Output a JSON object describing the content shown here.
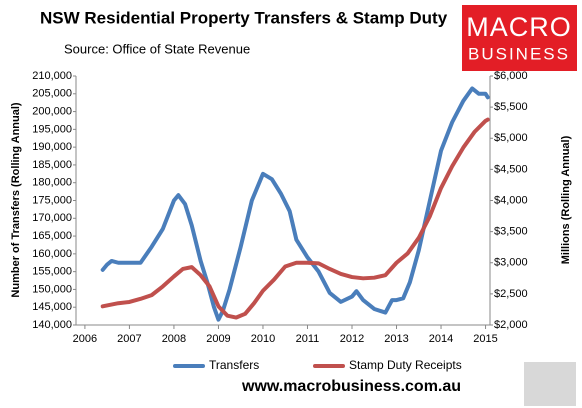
{
  "chart_data": {
    "type": "line",
    "title": "NSW Residential Property Transfers & Stamp Duty",
    "subtitle": "Source: Office of State Revenue",
    "logo": [
      "MACRO",
      "BUSINESS"
    ],
    "footer": "www.macrobusiness.com.au",
    "y_label": "Number of Transfers (Rolling Annual)",
    "y2_label": "Millions (Rolling Annual)",
    "xlim": [
      2005.8,
      2015.1
    ],
    "xticks": [
      2006,
      2007,
      2008,
      2009,
      2010,
      2011,
      2012,
      2013,
      2014,
      2015
    ],
    "ylim": [
      140000,
      210000
    ],
    "yticks": [
      {
        "value": 140000,
        "label": "140,000"
      },
      {
        "value": 145000,
        "label": "145,000"
      },
      {
        "value": 150000,
        "label": "150,000"
      },
      {
        "value": 155000,
        "label": "155,000"
      },
      {
        "value": 160000,
        "label": "160,000"
      },
      {
        "value": 165000,
        "label": "165,000"
      },
      {
        "value": 170000,
        "label": "170,000"
      },
      {
        "value": 175000,
        "label": "175,000"
      },
      {
        "value": 180000,
        "label": "180,000"
      },
      {
        "value": 185000,
        "label": "185,000"
      },
      {
        "value": 190000,
        "label": "190,000"
      },
      {
        "value": 195000,
        "label": "195,000"
      },
      {
        "value": 200000,
        "label": "200,000"
      },
      {
        "value": 205000,
        "label": "205,000"
      },
      {
        "value": 210000,
        "label": "210,000"
      }
    ],
    "y2lim": [
      2000,
      6000
    ],
    "y2ticks": [
      {
        "value": 2000,
        "label": "$2,000"
      },
      {
        "value": 2500,
        "label": "$2,500"
      },
      {
        "value": 3000,
        "label": "$3,000"
      },
      {
        "value": 3500,
        "label": "$3,500"
      },
      {
        "value": 4000,
        "label": "$4,000"
      },
      {
        "value": 4500,
        "label": "$4,500"
      },
      {
        "value": 5000,
        "label": "$5,000"
      },
      {
        "value": 5500,
        "label": "$5,500"
      },
      {
        "value": 6000,
        "label": "$6,000"
      }
    ],
    "grid": false,
    "legend": "bottom",
    "series": [
      {
        "name": "Transfers",
        "color": "#4a7ebb",
        "x": [
          2006.4,
          2006.5,
          2006.6,
          2006.75,
          2007.0,
          2007.25,
          2007.5,
          2007.75,
          2008.0,
          2008.1,
          2008.25,
          2008.4,
          2008.6,
          2008.75,
          2008.9,
          2009.0,
          2009.1,
          2009.25,
          2009.5,
          2009.75,
          2010.0,
          2010.2,
          2010.4,
          2010.6,
          2010.75,
          2011.0,
          2011.25,
          2011.5,
          2011.75,
          2012.0,
          2012.1,
          2012.25,
          2012.5,
          2012.75,
          2012.9,
          2013.0,
          2013.15,
          2013.3,
          2013.5,
          2013.75,
          2014.0,
          2014.25,
          2014.5,
          2014.7,
          2014.85,
          2015.0,
          2015.05
        ],
        "values": [
          155500,
          157000,
          158000,
          157500,
          157500,
          157500,
          162000,
          167000,
          175000,
          176500,
          174000,
          168000,
          158000,
          152000,
          145000,
          141500,
          144000,
          150000,
          162000,
          175000,
          182500,
          181000,
          177000,
          172000,
          164000,
          159000,
          155000,
          149000,
          146500,
          148000,
          149500,
          147000,
          144500,
          143500,
          147000,
          147000,
          147500,
          152000,
          161000,
          175000,
          189000,
          197000,
          203000,
          206500,
          205000,
          205000,
          204000
        ]
      },
      {
        "name": "Stamp Duty Receipts",
        "color": "#c0504d",
        "axis": "y2",
        "x": [
          2006.4,
          2006.75,
          2007.0,
          2007.25,
          2007.5,
          2007.75,
          2008.0,
          2008.2,
          2008.4,
          2008.6,
          2008.8,
          2009.0,
          2009.2,
          2009.4,
          2009.6,
          2009.8,
          2010.0,
          2010.25,
          2010.5,
          2010.75,
          2011.0,
          2011.25,
          2011.5,
          2011.75,
          2012.0,
          2012.25,
          2012.5,
          2012.75,
          2013.0,
          2013.25,
          2013.5,
          2013.75,
          2014.0,
          2014.25,
          2014.5,
          2014.75,
          2015.0,
          2015.05
        ],
        "values": [
          2300,
          2350,
          2370,
          2420,
          2480,
          2620,
          2780,
          2900,
          2930,
          2800,
          2620,
          2300,
          2150,
          2120,
          2180,
          2350,
          2550,
          2730,
          2940,
          3000,
          3000,
          2990,
          2900,
          2820,
          2770,
          2750,
          2760,
          2800,
          3000,
          3150,
          3400,
          3750,
          4200,
          4550,
          4850,
          5100,
          5280,
          5300
        ]
      }
    ]
  }
}
